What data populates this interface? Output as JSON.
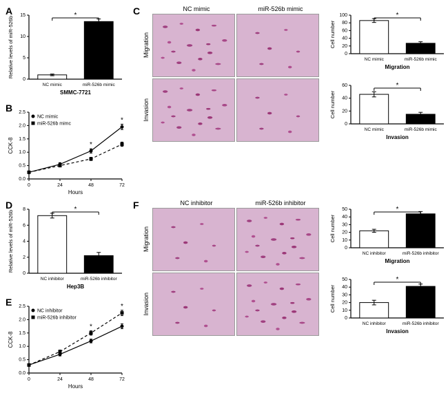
{
  "panelA": {
    "type": "bar",
    "ylabel": "Relative levels of miR-526b",
    "xlabel": "SMMC-7721",
    "categories": [
      "NC mimic",
      "miR-526b mimic"
    ],
    "values": [
      1.0,
      13.5
    ],
    "errors": [
      0.2,
      0.6
    ],
    "colors": [
      "#ffffff",
      "#000000"
    ],
    "ylim": [
      0,
      15
    ],
    "ytick_step": 5,
    "sig": "*",
    "axis_fontsize": 8,
    "tick_fontsize": 7
  },
  "panelB": {
    "type": "line",
    "ylabel": "CCK-8",
    "xlabel": "Hours",
    "legend": [
      "NC mimic",
      "miR-526b mimc"
    ],
    "x": [
      0,
      24,
      48,
      72
    ],
    "series": [
      {
        "y": [
          0.25,
          0.55,
          1.05,
          1.95
        ],
        "err": [
          0.04,
          0.06,
          0.08,
          0.1
        ],
        "marker": "circle",
        "dash": "none"
      },
      {
        "y": [
          0.25,
          0.5,
          0.75,
          1.3
        ],
        "err": [
          0.04,
          0.05,
          0.06,
          0.08
        ],
        "marker": "square",
        "dash": "4,3"
      }
    ],
    "ylim": [
      0.0,
      2.5
    ],
    "ytick_step": 0.5,
    "sig_x": [
      48,
      72
    ]
  },
  "panelC": {
    "col_headers": [
      "NC mimic",
      "miR-526b mimic"
    ],
    "rows": [
      "Migration",
      "Invasion"
    ],
    "density": [
      [
        "dense",
        "sparse"
      ],
      [
        "dense",
        "sparse"
      ]
    ],
    "bar_migration": {
      "ylabel": "Cell number",
      "xlabel": "Migration",
      "categories": [
        "NC mimic",
        "miR-526b mimic"
      ],
      "values": [
        86,
        27
      ],
      "errors": [
        5,
        4
      ],
      "colors": [
        "#ffffff",
        "#000000"
      ],
      "ylim": [
        0,
        100
      ],
      "ytick_step": 20,
      "sig": "*"
    },
    "bar_invasion": {
      "ylabel": "Cell number",
      "xlabel": "Invasion",
      "categories": [
        "NC mimic",
        "miR-526b mimic"
      ],
      "values": [
        46,
        15
      ],
      "errors": [
        4,
        3
      ],
      "colors": [
        "#ffffff",
        "#000000"
      ],
      "ylim": [
        0,
        60
      ],
      "ytick_step": 20,
      "sig": "*"
    }
  },
  "panelD": {
    "type": "bar",
    "ylabel": "Relative levels of miR-526b",
    "xlabel": "Hep3B",
    "categories": [
      "NC inhibitor",
      "miR-526b inhibitor"
    ],
    "values": [
      7.2,
      2.2
    ],
    "errors": [
      0.3,
      0.4
    ],
    "colors": [
      "#ffffff",
      "#000000"
    ],
    "ylim": [
      0,
      8
    ],
    "ytick_step": 2,
    "sig": "*"
  },
  "panelE": {
    "type": "line",
    "ylabel": "CCK-8",
    "xlabel": "Hours",
    "legend": [
      "NC inhibitor",
      "miR-526b inhibitor"
    ],
    "x": [
      0,
      24,
      48,
      72
    ],
    "series": [
      {
        "y": [
          0.3,
          0.7,
          1.2,
          1.75
        ],
        "err": [
          0.04,
          0.06,
          0.07,
          0.09
        ],
        "marker": "circle",
        "dash": "none"
      },
      {
        "y": [
          0.3,
          0.8,
          1.5,
          2.25
        ],
        "err": [
          0.04,
          0.06,
          0.08,
          0.1
        ],
        "marker": "square",
        "dash": "4,3"
      }
    ],
    "ylim": [
      0.0,
      2.5
    ],
    "ytick_step": 0.5,
    "sig_x": [
      48,
      72
    ]
  },
  "panelF": {
    "col_headers": [
      "NC inhibitor",
      "miR-526b inhibitor"
    ],
    "rows": [
      "Migration",
      "Invasion"
    ],
    "density": [
      [
        "sparse",
        "dense"
      ],
      [
        "sparse",
        "dense"
      ]
    ],
    "bar_migration": {
      "ylabel": "Cell number",
      "xlabel": "Migration",
      "categories": [
        "NC inhibitor",
        "miR-526b inhibitor"
      ],
      "values": [
        22,
        44
      ],
      "errors": [
        2,
        3
      ],
      "colors": [
        "#ffffff",
        "#000000"
      ],
      "ylim": [
        0,
        50
      ],
      "ytick_step": 10,
      "sig": "*"
    },
    "bar_invasion": {
      "ylabel": "Cell number",
      "xlabel": "Invasion",
      "categories": [
        "NC inhibitor",
        "miR-526b inhibitor"
      ],
      "values": [
        20,
        41
      ],
      "errors": [
        3,
        3
      ],
      "colors": [
        "#ffffff",
        "#000000"
      ],
      "ylim": [
        0,
        50
      ],
      "ytick_step": 10,
      "sig": "*"
    }
  },
  "style": {
    "axis_color": "#000000",
    "bg": "#ffffff",
    "tick_fontsize": 7,
    "label_fontsize": 8
  }
}
